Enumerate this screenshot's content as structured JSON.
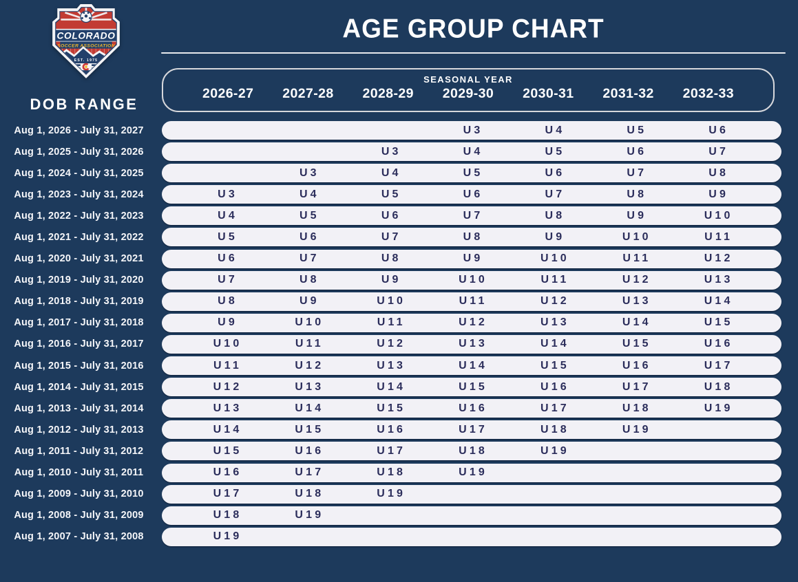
{
  "header": {
    "title": "AGE GROUP CHART"
  },
  "logo": {
    "org_line1": "COLORADO",
    "org_line2": "SOCCER ASSOCIATION",
    "est": "EST. 1975"
  },
  "left_panel": {
    "dob_range_label": "DOB RANGE"
  },
  "seasonal": {
    "label": "SEASONAL YEAR"
  },
  "chart_data": {
    "type": "table",
    "title": "AGE GROUP CHART",
    "row_group_label": "DOB RANGE",
    "column_group_label": "SEASONAL YEAR",
    "columns": [
      "2026-27",
      "2027-28",
      "2028-29",
      "2029-30",
      "2030-31",
      "2031-32",
      "2032-33"
    ],
    "rows": [
      {
        "dob": "Aug 1, 2026 - July 31, 2027",
        "cells": [
          "",
          "",
          "",
          "U3",
          "U4",
          "U5",
          "U6"
        ]
      },
      {
        "dob": "Aug 1, 2025 - July 31, 2026",
        "cells": [
          "",
          "",
          "U3",
          "U4",
          "U5",
          "U6",
          "U7"
        ]
      },
      {
        "dob": "Aug 1, 2024 - July 31, 2025",
        "cells": [
          "",
          "U3",
          "U4",
          "U5",
          "U6",
          "U7",
          "U8"
        ]
      },
      {
        "dob": "Aug 1, 2023 - July 31, 2024",
        "cells": [
          "U3",
          "U4",
          "U5",
          "U6",
          "U7",
          "U8",
          "U9"
        ]
      },
      {
        "dob": "Aug 1, 2022 - July 31, 2023",
        "cells": [
          "U4",
          "U5",
          "U6",
          "U7",
          "U8",
          "U9",
          "U10"
        ]
      },
      {
        "dob": "Aug 1, 2021 - July 31, 2022",
        "cells": [
          "U5",
          "U6",
          "U7",
          "U8",
          "U9",
          "U10",
          "U11"
        ]
      },
      {
        "dob": "Aug 1, 2020 - July 31, 2021",
        "cells": [
          "U6",
          "U7",
          "U8",
          "U9",
          "U10",
          "U11",
          "U12"
        ]
      },
      {
        "dob": "Aug 1, 2019 - July 31, 2020",
        "cells": [
          "U7",
          "U8",
          "U9",
          "U10",
          "U11",
          "U12",
          "U13"
        ]
      },
      {
        "dob": "Aug 1, 2018 - July 31, 2019",
        "cells": [
          "U8",
          "U9",
          "U10",
          "U11",
          "U12",
          "U13",
          "U14"
        ]
      },
      {
        "dob": "Aug 1, 2017 - July 31, 2018",
        "cells": [
          "U9",
          "U10",
          "U11",
          "U12",
          "U13",
          "U14",
          "U15"
        ]
      },
      {
        "dob": "Aug 1, 2016 - July 31, 2017",
        "cells": [
          "U10",
          "U11",
          "U12",
          "U13",
          "U14",
          "U15",
          "U16"
        ]
      },
      {
        "dob": "Aug 1, 2015 - July 31, 2016",
        "cells": [
          "U11",
          "U12",
          "U13",
          "U14",
          "U15",
          "U16",
          "U17"
        ]
      },
      {
        "dob": "Aug 1, 2014 - July 31, 2015",
        "cells": [
          "U12",
          "U13",
          "U14",
          "U15",
          "U16",
          "U17",
          "U18"
        ]
      },
      {
        "dob": "Aug 1, 2013 - July 31, 2014",
        "cells": [
          "U13",
          "U14",
          "U15",
          "U16",
          "U17",
          "U18",
          "U19"
        ]
      },
      {
        "dob": "Aug 1, 2012 - July 31, 2013",
        "cells": [
          "U14",
          "U15",
          "U16",
          "U17",
          "U18",
          "U19",
          ""
        ]
      },
      {
        "dob": "Aug 1, 2011 - July 31, 2012",
        "cells": [
          "U15",
          "U16",
          "U17",
          "U18",
          "U19",
          "",
          ""
        ]
      },
      {
        "dob": "Aug 1, 2010 - July 31, 2011",
        "cells": [
          "U16",
          "U17",
          "U18",
          "U19",
          "",
          "",
          ""
        ]
      },
      {
        "dob": "Aug 1, 2009 - July 31, 2010",
        "cells": [
          "U17",
          "U18",
          "U19",
          "",
          "",
          "",
          ""
        ]
      },
      {
        "dob": "Aug 1, 2008 - July 31, 2009",
        "cells": [
          "U18",
          "U19",
          "",
          "",
          "",
          "",
          ""
        ]
      },
      {
        "dob": "Aug 1, 2007 - July 31, 2008",
        "cells": [
          "U19",
          "",
          "",
          "",
          "",
          "",
          ""
        ]
      }
    ]
  },
  "colors": {
    "background": "#1d3a5c",
    "row_pill": "#f2f1f6",
    "cell_text": "#2b2d5b",
    "header_text": "#ffffff",
    "header_box_border": "#d7d8dc",
    "logo_red": "#c23b33",
    "logo_navy": "#22406b",
    "logo_gold": "#f3b929"
  }
}
